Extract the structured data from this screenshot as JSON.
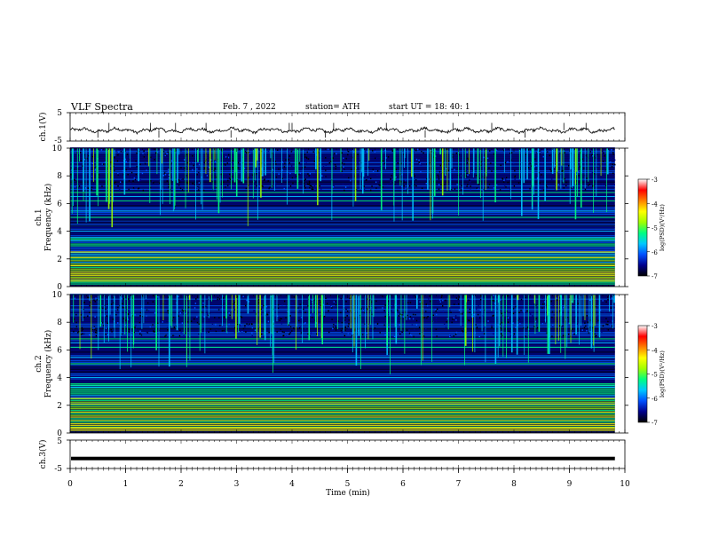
{
  "header": {
    "title": "VLF  Spectra",
    "date": "Feb. 7  , 2022",
    "station": "station= ATH",
    "start": "start  UT  =   18: 40: 1"
  },
  "colors": {
    "trace": "#111111",
    "spectro_bg": "#000a4a",
    "colormap": [
      "#000000",
      "#00008c",
      "#0050ff",
      "#00c8ff",
      "#00ff80",
      "#a0ff00",
      "#ffff00",
      "#ff8000",
      "#ff0000",
      "#ffffff"
    ]
  },
  "chart_data": [
    {
      "type": "line",
      "name": "ch1-waveform",
      "ylabel": "ch.1(V)",
      "ylim": [
        -5,
        5
      ],
      "ytick_labels": [
        "5",
        "-5"
      ],
      "xlim": [
        0,
        10
      ],
      "level": -1.2,
      "spikes": [
        0.5,
        0.7,
        1.45,
        1.6,
        1.9,
        2.45,
        2.9,
        3.95,
        4.0,
        4.6,
        4.75,
        5.7,
        6.4,
        6.9,
        7.6,
        8.2,
        8.9,
        9.3
      ]
    },
    {
      "type": "heatmap",
      "name": "ch1-spectrogram",
      "ylabel": "ch.1\nFrequency  (kHz)",
      "ylim": [
        0,
        10
      ],
      "ytick_labels": [
        "10",
        "8",
        "6",
        "4",
        "2",
        "0"
      ],
      "colorbar": {
        "label": "log(PSD)(V²/Hz)",
        "ticks": [
          "-3",
          "-4",
          "-5",
          "-6",
          "-7"
        ],
        "range": [
          -7,
          -3
        ]
      }
    },
    {
      "type": "heatmap",
      "name": "ch2-spectrogram",
      "ylabel": "ch.2\nFrequency  (kHz)",
      "ylim": [
        0,
        10
      ],
      "ytick_labels": [
        "10",
        "8",
        "6",
        "4",
        "2",
        "0"
      ],
      "colorbar": {
        "label": "log(PSD)(V²/Hz)",
        "ticks": [
          "-3",
          "-4",
          "-5",
          "-6",
          "-7"
        ],
        "range": [
          -7,
          -3
        ]
      }
    },
    {
      "type": "line",
      "name": "ch3-waveform",
      "ylabel": "ch.3(V)",
      "ylim": [
        -5,
        5
      ],
      "ytick_labels": [
        "5",
        "-5"
      ],
      "xlim": [
        0,
        10
      ],
      "level": -1.5
    }
  ],
  "xaxis": {
    "label": "Time  (min)",
    "ticks": [
      "0",
      "1",
      "2",
      "3",
      "4",
      "5",
      "6",
      "7",
      "8",
      "9",
      "10"
    ],
    "xlim": [
      0,
      10
    ],
    "data_end": 9.82
  }
}
